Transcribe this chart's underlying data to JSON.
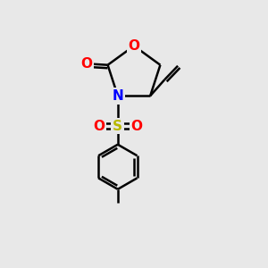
{
  "bg_color": "#e8e8e8",
  "bond_color": "#000000",
  "bond_width": 1.8,
  "atom_colors": {
    "O": "#ff0000",
    "N": "#0000ff",
    "S": "#b8b800",
    "C": "#000000"
  },
  "figsize": [
    3.0,
    3.0
  ],
  "dpi": 100,
  "xlim": [
    0,
    10
  ],
  "ylim": [
    0,
    10
  ]
}
